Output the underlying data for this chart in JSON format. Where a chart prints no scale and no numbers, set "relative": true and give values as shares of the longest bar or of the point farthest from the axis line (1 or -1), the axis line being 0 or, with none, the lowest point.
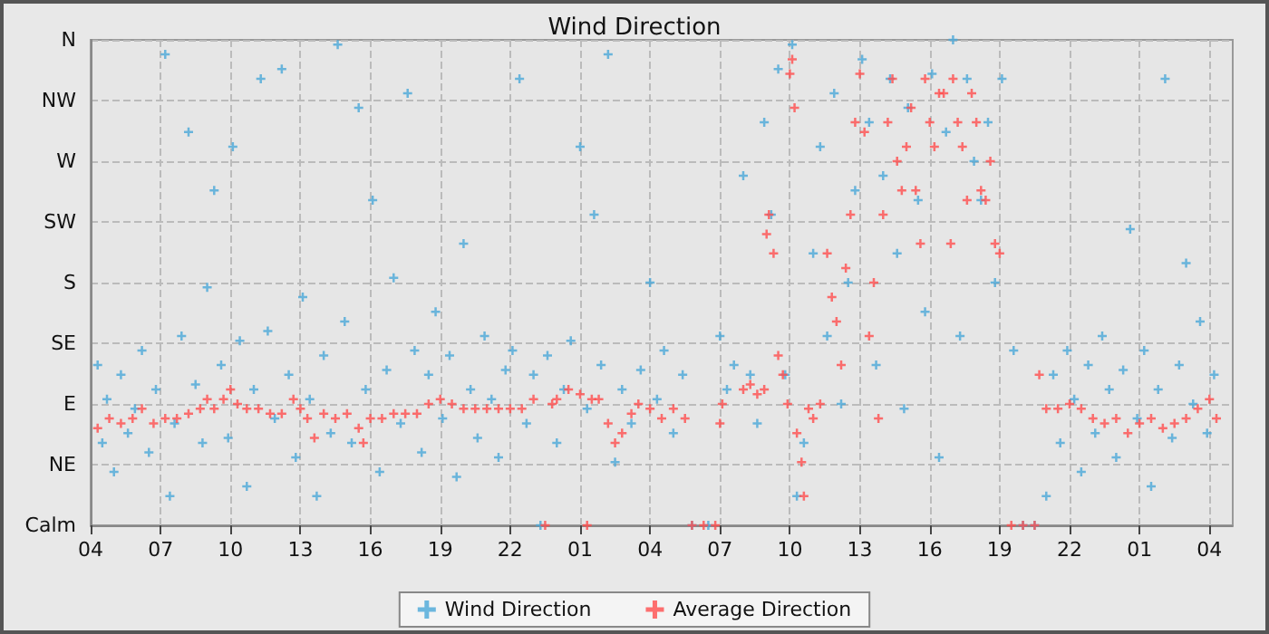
{
  "chart_data": {
    "type": "scatter",
    "title": "Wind Direction",
    "xlim": [
      "--01-01T04:00",
      "--01-03T05:00"
    ],
    "xticks": [
      {
        "value": "--01-01T04:00",
        "label": "04"
      },
      {
        "value": "--01-01T07:00",
        "label": "07"
      },
      {
        "value": "--01-01T10:00",
        "label": "10"
      },
      {
        "value": "--01-01T13:00",
        "label": "13"
      },
      {
        "value": "--01-01T16:00",
        "label": "16"
      },
      {
        "value": "--01-01T19:00",
        "label": "19"
      },
      {
        "value": "--01-01T22:00",
        "label": "22"
      },
      {
        "value": "--01-02T01:00",
        "label": "01"
      },
      {
        "value": "--01-02T04:00",
        "label": "04"
      },
      {
        "value": "--01-02T07:00",
        "label": "07"
      },
      {
        "value": "--01-02T10:00",
        "label": "10"
      },
      {
        "value": "--01-02T13:00",
        "label": "13"
      },
      {
        "value": "--01-02T16:00",
        "label": "16"
      },
      {
        "value": "--01-02T19:00",
        "label": "19"
      },
      {
        "value": "--01-02T22:00",
        "label": "22"
      },
      {
        "value": "--01-03T01:00",
        "label": "01"
      },
      {
        "value": "--01-03T04:00",
        "label": "04"
      }
    ],
    "relative": true,
    "y_categories": [
      "N",
      "NW",
      "W",
      "SW",
      "S",
      "SE",
      "E",
      "NE",
      "Calm"
    ],
    "grid": true,
    "legend": "bottom",
    "marker": "cross",
    "series": [
      {
        "name": "Wind Direction",
        "color": "#4aa8d8",
        "x": [
          "--01-01T04:18",
          "--01-01T04:30",
          "--01-01T04:42",
          "--01-01T05:00",
          "--01-01T05:18",
          "--01-01T05:36",
          "--01-01T05:54",
          "--01-01T06:12",
          "--01-01T06:30",
          "--01-01T06:48",
          "--01-01T07:12",
          "--01-01T07:24",
          "--01-01T07:36",
          "--01-01T07:54",
          "--01-01T08:12",
          "--01-01T08:30",
          "--01-01T08:48",
          "--01-01T09:00",
          "--01-01T09:18",
          "--01-01T09:36",
          "--01-01T09:54",
          "--01-01T10:06",
          "--01-01T10:24",
          "--01-01T10:42",
          "--01-01T11:00",
          "--01-01T11:18",
          "--01-01T11:36",
          "--01-01T11:54",
          "--01-01T12:12",
          "--01-01T12:30",
          "--01-01T12:48",
          "--01-01T13:06",
          "--01-01T13:24",
          "--01-01T13:42",
          "--01-01T14:00",
          "--01-01T14:18",
          "--01-01T14:36",
          "--01-01T14:54",
          "--01-01T15:12",
          "--01-01T15:30",
          "--01-01T15:48",
          "--01-01T16:06",
          "--01-01T16:24",
          "--01-01T16:42",
          "--01-01T17:00",
          "--01-01T17:18",
          "--01-01T17:36",
          "--01-01T17:54",
          "--01-01T18:12",
          "--01-01T18:30",
          "--01-01T18:48",
          "--01-01T19:06",
          "--01-01T19:24",
          "--01-01T19:42",
          "--01-01T20:00",
          "--01-01T20:18",
          "--01-01T20:36",
          "--01-01T20:54",
          "--01-01T21:12",
          "--01-01T21:30",
          "--01-01T21:48",
          "--01-01T22:06",
          "--01-01T22:24",
          "--01-01T22:42",
          "--01-01T23:00",
          "--01-01T23:18",
          "--01-01T23:36",
          "--01-02T00:00",
          "--01-02T00:18",
          "--01-02T00:36",
          "--01-02T01:00",
          "--01-02T01:18",
          "--01-02T01:36",
          "--01-02T01:54",
          "--01-02T02:12",
          "--01-02T02:30",
          "--01-02T02:48",
          "--01-02T03:12",
          "--01-02T03:36",
          "--01-02T04:00",
          "--01-02T04:18",
          "--01-02T04:36",
          "--01-02T05:00",
          "--01-02T05:24",
          "--01-02T05:48",
          "--01-02T06:30",
          "--01-02T07:00",
          "--01-02T07:18",
          "--01-02T07:36",
          "--01-02T08:00",
          "--01-02T08:18",
          "--01-02T08:36",
          "--01-02T08:54",
          "--01-02T09:12",
          "--01-02T09:30",
          "--01-02T09:48",
          "--01-02T10:06",
          "--01-02T10:18",
          "--01-02T10:36",
          "--01-02T11:00",
          "--01-02T11:18",
          "--01-02T11:36",
          "--01-02T11:54",
          "--01-02T12:12",
          "--01-02T12:30",
          "--01-02T12:48",
          "--01-02T13:06",
          "--01-02T13:24",
          "--01-02T13:42",
          "--01-02T14:00",
          "--01-02T14:18",
          "--01-02T14:36",
          "--01-02T14:54",
          "--01-02T15:04",
          "--01-02T15:30",
          "--01-02T15:48",
          "--01-02T16:06",
          "--01-02T16:24",
          "--01-02T16:42",
          "--01-02T17:00",
          "--01-02T17:18",
          "--01-02T17:36",
          "--01-02T17:54",
          "--01-02T18:12",
          "--01-02T18:30",
          "--01-02T18:48",
          "--01-02T19:06",
          "--01-02T19:36",
          "--01-02T20:00",
          "--01-02T20:30",
          "--01-02T21:00",
          "--01-02T21:18",
          "--01-02T21:36",
          "--01-02T21:54",
          "--01-02T22:12",
          "--01-02T22:30",
          "--01-02T22:48",
          "--01-02T23:06",
          "--01-02T23:24",
          "--01-02T23:42",
          "--01-03T00:00",
          "--01-03T00:18",
          "--01-03T00:36",
          "--01-03T00:54",
          "--01-03T01:12",
          "--01-03T01:30",
          "--01-03T01:48",
          "--01-03T02:06",
          "--01-03T02:24",
          "--01-03T02:42",
          "--01-03T03:00",
          "--01-03T03:18",
          "--01-03T03:36",
          "--01-03T03:54",
          "--01-03T04:12"
        ],
        "values": [
          0.33,
          0.17,
          0.26,
          0.11,
          0.31,
          0.19,
          0.24,
          0.36,
          0.15,
          0.28,
          0.97,
          0.06,
          0.21,
          0.39,
          0.81,
          0.29,
          0.17,
          0.49,
          0.69,
          0.33,
          0.18,
          0.78,
          0.38,
          0.08,
          0.28,
          0.92,
          0.4,
          0.22,
          0.94,
          0.31,
          0.14,
          0.47,
          0.26,
          0.06,
          0.35,
          0.19,
          0.99,
          0.42,
          0.17,
          0.86,
          0.28,
          0.67,
          0.11,
          0.32,
          0.51,
          0.21,
          0.89,
          0.36,
          0.15,
          0.31,
          0.44,
          0.22,
          0.35,
          0.1,
          0.58,
          0.28,
          0.18,
          0.39,
          0.26,
          0.14,
          0.32,
          0.36,
          0.92,
          0.21,
          0.31,
          0,
          0.35,
          0.17,
          0.28,
          0.38,
          0.78,
          0.24,
          0.64,
          0.33,
          0.97,
          0.13,
          0.28,
          0.21,
          0.32,
          0.5,
          0.26,
          0.36,
          0.19,
          0.31,
          0,
          0,
          0.39,
          0.28,
          0.33,
          0.72,
          0.31,
          0.21,
          0.83,
          0.64,
          0.94,
          0.31,
          0.99,
          0.06,
          0.17,
          0.56,
          0.78,
          0.39,
          0.89,
          0.25,
          0.5,
          0.69,
          0.96,
          0.83,
          0.33,
          0.72,
          0.92,
          0.56,
          0.24,
          0.86,
          0.67,
          0.44,
          0.93,
          0.14,
          0.81,
          1,
          0.39,
          0.92,
          0.75,
          0.67,
          0.83,
          0.5,
          0.92,
          0.36,
          0,
          0,
          0.06,
          0.31,
          0.17,
          0.36,
          0.26,
          0.11,
          0.33,
          0.19,
          0.39,
          0.28,
          0.14,
          0.32,
          0.61,
          0.22,
          0.36,
          0.08,
          0.28,
          0.92,
          0.18,
          0.33,
          0.54,
          0.25,
          0.42,
          0.19,
          0.31
        ]
      },
      {
        "name": "Average Direction",
        "color": "#ff4d4d",
        "x": [
          "--01-01T04:18",
          "--01-01T04:48",
          "--01-01T05:18",
          "--01-01T05:48",
          "--01-01T06:12",
          "--01-01T06:42",
          "--01-01T07:12",
          "--01-01T07:42",
          "--01-01T08:12",
          "--01-01T08:42",
          "--01-01T09:00",
          "--01-01T09:18",
          "--01-01T09:42",
          "--01-01T10:00",
          "--01-01T10:18",
          "--01-01T10:42",
          "--01-01T11:12",
          "--01-01T11:42",
          "--01-01T12:12",
          "--01-01T12:42",
          "--01-01T13:00",
          "--01-01T13:18",
          "--01-01T13:36",
          "--01-01T14:00",
          "--01-01T14:30",
          "--01-01T15:00",
          "--01-01T15:30",
          "--01-01T15:42",
          "--01-01T16:00",
          "--01-01T16:30",
          "--01-01T17:00",
          "--01-01T17:30",
          "--01-01T18:00",
          "--01-01T18:30",
          "--01-01T19:00",
          "--01-01T19:30",
          "--01-01T20:00",
          "--01-01T20:30",
          "--01-01T21:00",
          "--01-01T21:30",
          "--01-01T22:00",
          "--01-01T22:30",
          "--01-01T23:00",
          "--01-01T23:30",
          "--01-01T23:48",
          "--01-02T00:00",
          "--01-02T00:30",
          "--01-02T01:00",
          "--01-02T01:18",
          "--01-02T01:30",
          "--01-02T01:48",
          "--01-02T02:12",
          "--01-02T02:30",
          "--01-02T02:48",
          "--01-02T03:12",
          "--01-02T03:30",
          "--01-02T04:00",
          "--01-02T04:30",
          "--01-02T05:00",
          "--01-02T05:30",
          "--01-02T05:48",
          "--01-02T06:18",
          "--01-02T06:48",
          "--01-02T07:00",
          "--01-02T07:06",
          "--01-02T08:00",
          "--01-02T08:18",
          "--01-02T08:36",
          "--01-02T08:54",
          "--01-02T09:00",
          "--01-02T09:06",
          "--01-02T09:18",
          "--01-02T09:30",
          "--01-02T09:42",
          "--01-02T09:54",
          "--01-02T10:00",
          "--01-02T10:06",
          "--01-02T10:12",
          "--01-02T10:18",
          "--01-02T10:30",
          "--01-02T10:36",
          "--01-02T10:48",
          "--01-02T11:00",
          "--01-02T11:18",
          "--01-02T11:36",
          "--01-02T11:48",
          "--01-02T12:00",
          "--01-02T12:12",
          "--01-02T12:24",
          "--01-02T12:36",
          "--01-02T12:48",
          "--01-02T13:00",
          "--01-02T13:12",
          "--01-02T13:24",
          "--01-02T13:36",
          "--01-02T13:48",
          "--01-02T14:00",
          "--01-02T14:12",
          "--01-02T14:24",
          "--01-02T14:36",
          "--01-02T14:48",
          "--01-02T15:00",
          "--01-02T15:12",
          "--01-02T15:24",
          "--01-02T15:36",
          "--01-02T15:48",
          "--01-02T16:00",
          "--01-02T16:12",
          "--01-02T16:24",
          "--01-02T16:36",
          "--01-02T16:54",
          "--01-02T17:00",
          "--01-02T17:12",
          "--01-02T17:24",
          "--01-02T17:36",
          "--01-02T17:48",
          "--01-02T18:00",
          "--01-02T18:12",
          "--01-02T18:24",
          "--01-02T18:36",
          "--01-02T18:48",
          "--01-02T19:00",
          "--01-02T19:30",
          "--01-02T20:00",
          "--01-02T20:30",
          "--01-02T20:42",
          "--01-02T21:00",
          "--01-02T21:30",
          "--01-02T22:00",
          "--01-02T22:30",
          "--01-02T23:00",
          "--01-02T23:30",
          "--01-03T00:00",
          "--01-03T00:30",
          "--01-03T01:00",
          "--01-03T01:30",
          "--01-03T02:00",
          "--01-03T02:30",
          "--01-03T03:00",
          "--01-03T03:30",
          "--01-03T04:00",
          "--01-03T04:18"
        ],
        "values": [
          0.2,
          0.22,
          0.21,
          0.22,
          0.24,
          0.21,
          0.22,
          0.22,
          0.23,
          0.24,
          0.26,
          0.24,
          0.26,
          0.28,
          0.25,
          0.24,
          0.24,
          0.23,
          0.23,
          0.26,
          0.24,
          0.22,
          0.18,
          0.23,
          0.22,
          0.23,
          0.2,
          0.17,
          0.22,
          0.22,
          0.23,
          0.23,
          0.23,
          0.25,
          0.26,
          0.25,
          0.24,
          0.24,
          0.24,
          0.24,
          0.24,
          0.24,
          0.26,
          0,
          0.25,
          0.26,
          0.28,
          0.27,
          0,
          0.26,
          0.26,
          0.21,
          0.17,
          0.19,
          0.23,
          0.25,
          0.24,
          0.22,
          0.24,
          0.22,
          0,
          0,
          0,
          0.21,
          0.25,
          0.28,
          0.29,
          0.27,
          0.28,
          0.6,
          0.64,
          0.56,
          0.35,
          0.31,
          0.25,
          0.93,
          0.96,
          0.86,
          0.19,
          0.13,
          0.06,
          0.24,
          0.22,
          0.25,
          0.56,
          0.47,
          0.42,
          0.33,
          0.53,
          0.64,
          0.83,
          0.93,
          0.81,
          0.39,
          0.5,
          0.22,
          0.64,
          0.83,
          0.92,
          0.75,
          0.69,
          0.78,
          0.86,
          0.69,
          0.58,
          0.92,
          0.83,
          0.78,
          0.89,
          0.89,
          0.58,
          0.92,
          0.83,
          0.78,
          0.67,
          0.89,
          0.83,
          0.69,
          0.67,
          0.75,
          0.58,
          0.56,
          0,
          0,
          0,
          0.31,
          0.24,
          0.24,
          0.25,
          0.24,
          0.22,
          0.21,
          0.22,
          0.19,
          0.21,
          0.22,
          0.2,
          0.21,
          0.22,
          0.24,
          0.26,
          0.22
        ]
      }
    ]
  }
}
